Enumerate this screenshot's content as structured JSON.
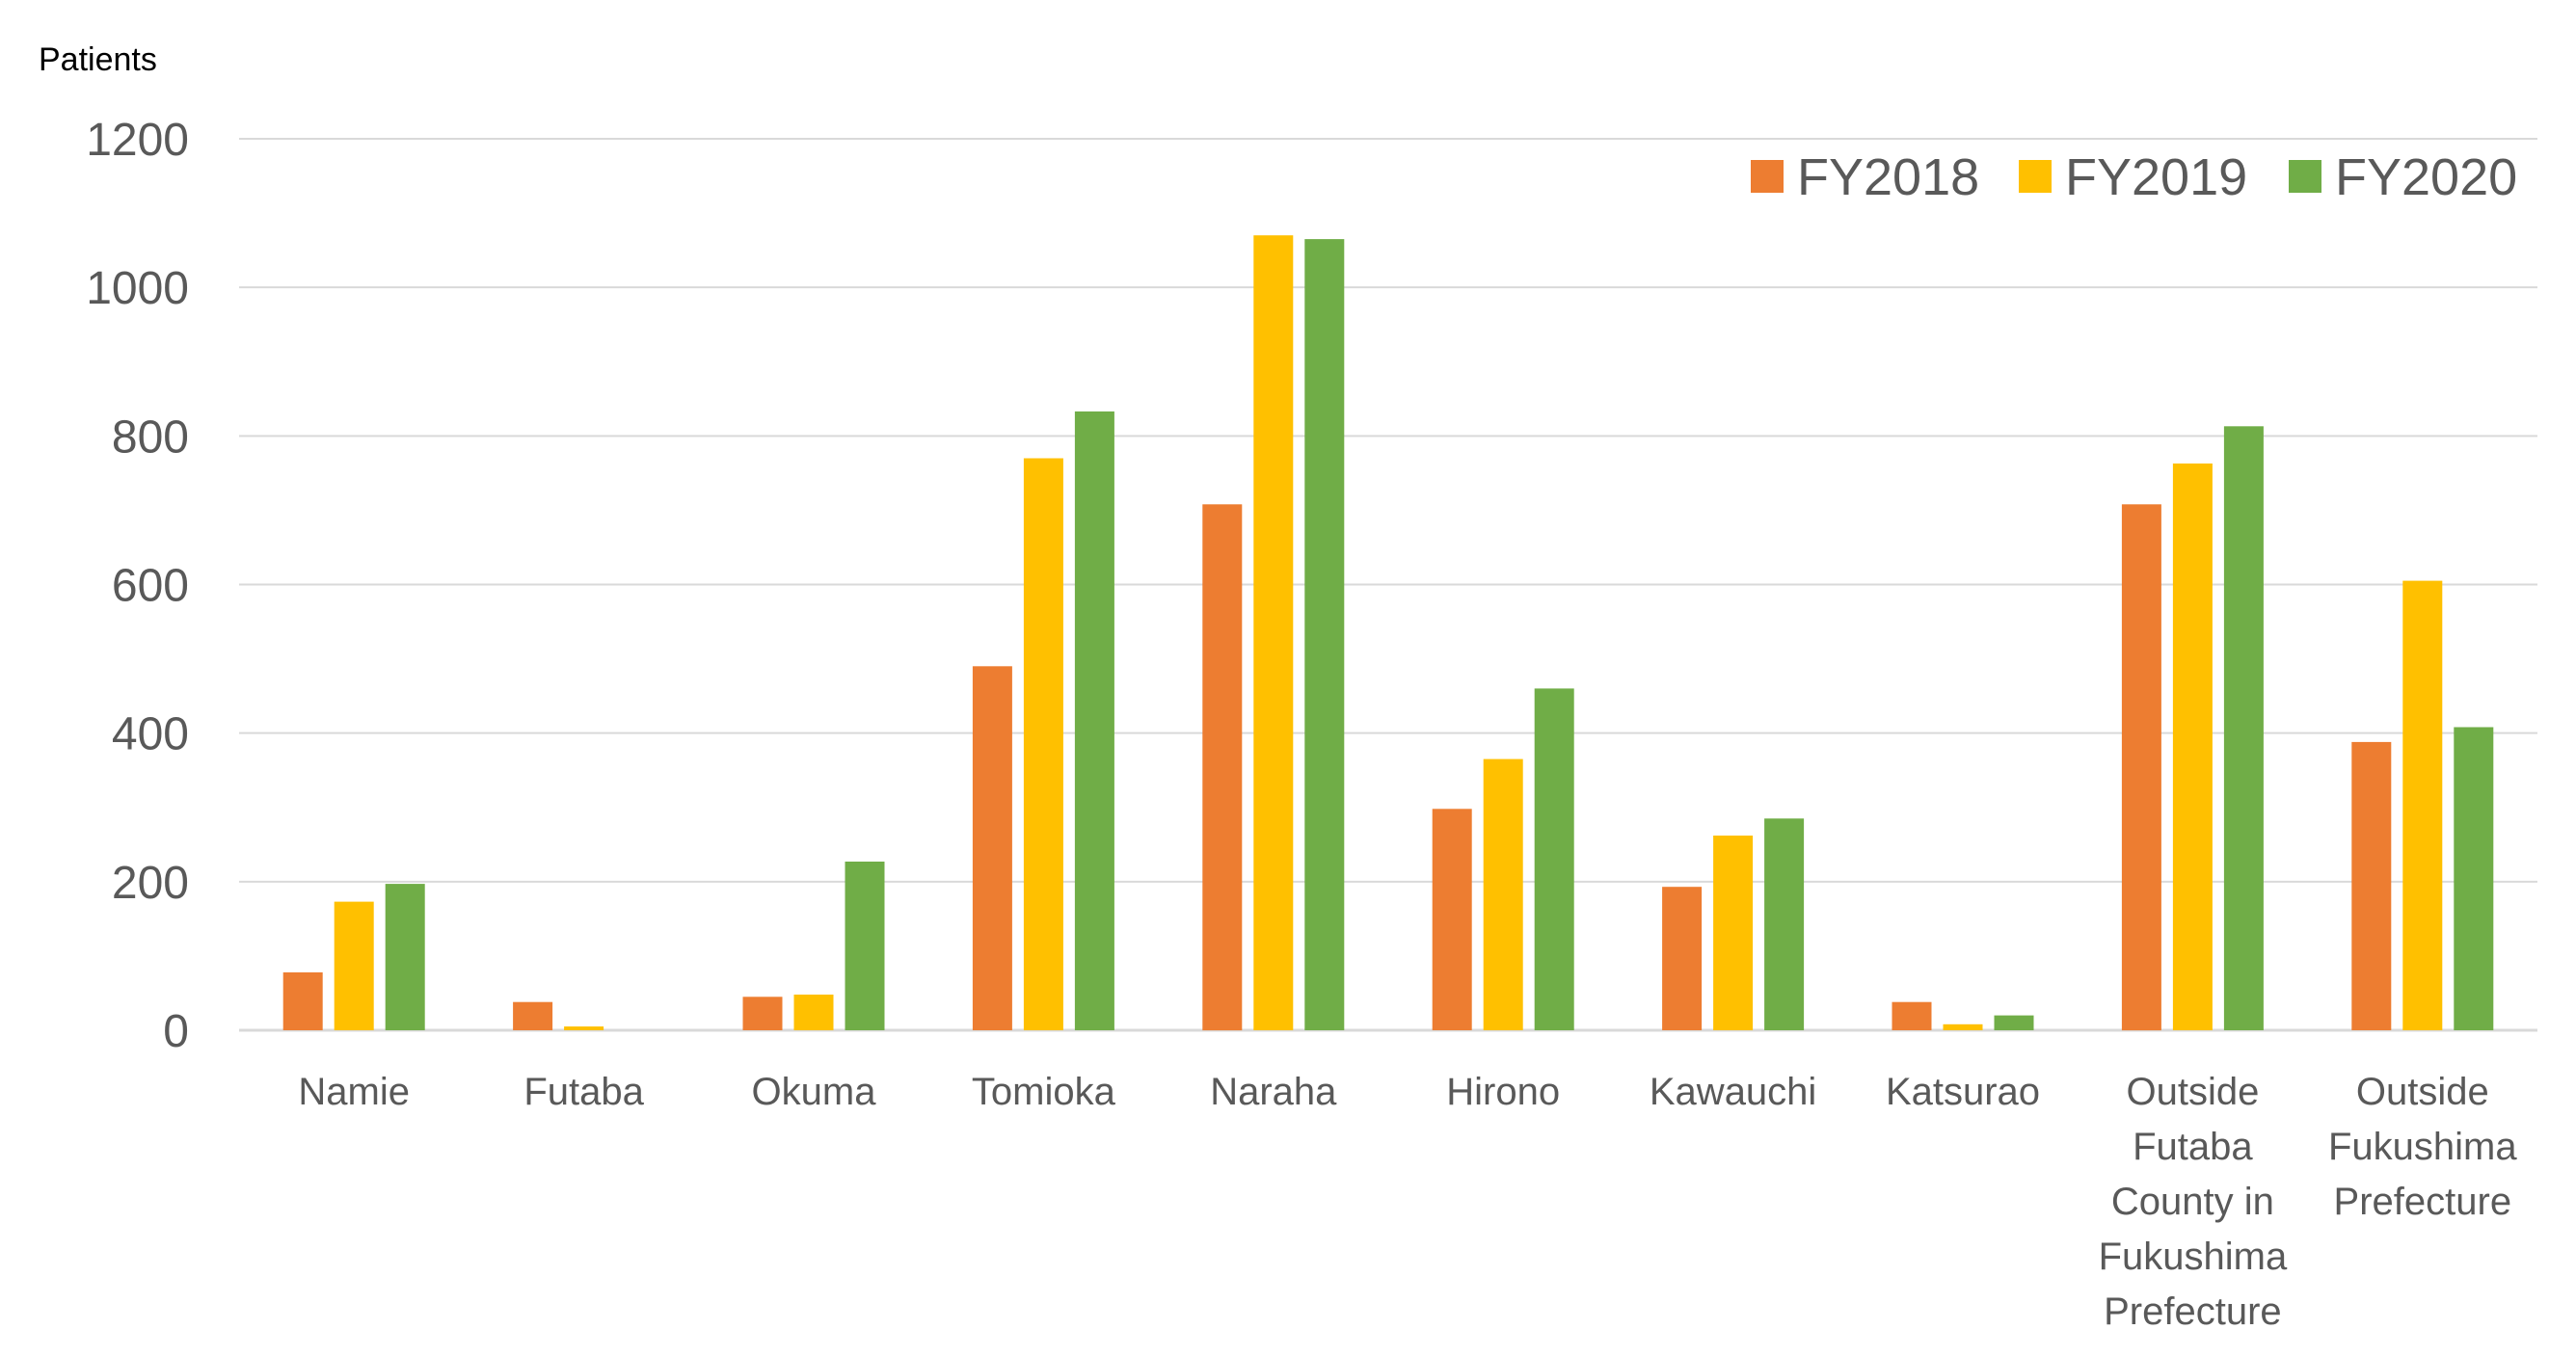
{
  "chart_data": {
    "type": "bar",
    "title": "",
    "xlabel": "",
    "ylabel": "Patients",
    "ylim": [
      0,
      1200
    ],
    "yticks": [
      0,
      200,
      400,
      600,
      800,
      1000,
      1200
    ],
    "grid": true,
    "legend_position": "top-right",
    "categories": [
      "Namie",
      "Futaba",
      "Okuma",
      "Tomioka",
      "Naraha",
      "Hirono",
      "Kawauchi",
      "Katsurao",
      "Outside Futaba County in Fukushima Prefecture",
      "Outside Fukushima Prefecture"
    ],
    "category_lines": [
      [
        "Namie"
      ],
      [
        "Futaba"
      ],
      [
        "Okuma"
      ],
      [
        "Tomioka"
      ],
      [
        "Naraha"
      ],
      [
        "Hirono"
      ],
      [
        "Kawauchi"
      ],
      [
        "Katsurao"
      ],
      [
        "Outside",
        "Futaba",
        "County in",
        "Fukushima",
        "Prefecture"
      ],
      [
        "Outside",
        "Fukushima",
        "Prefecture"
      ]
    ],
    "series": [
      {
        "name": "FY2018",
        "color": "#ED7D31",
        "values": [
          78,
          38,
          45,
          490,
          708,
          298,
          193,
          38,
          708,
          388
        ]
      },
      {
        "name": "FY2019",
        "color": "#FFC000",
        "values": [
          173,
          5,
          48,
          770,
          1070,
          365,
          262,
          8,
          763,
          605
        ]
      },
      {
        "name": "FY2020",
        "color": "#70AD47",
        "values": [
          197,
          0,
          227,
          833,
          1065,
          460,
          285,
          20,
          813,
          408
        ]
      }
    ],
    "colors": {
      "grid": "#D9D9D9",
      "axis": "#D9D9D9",
      "tick_text": "#595959",
      "unit_text": "#000000"
    }
  }
}
